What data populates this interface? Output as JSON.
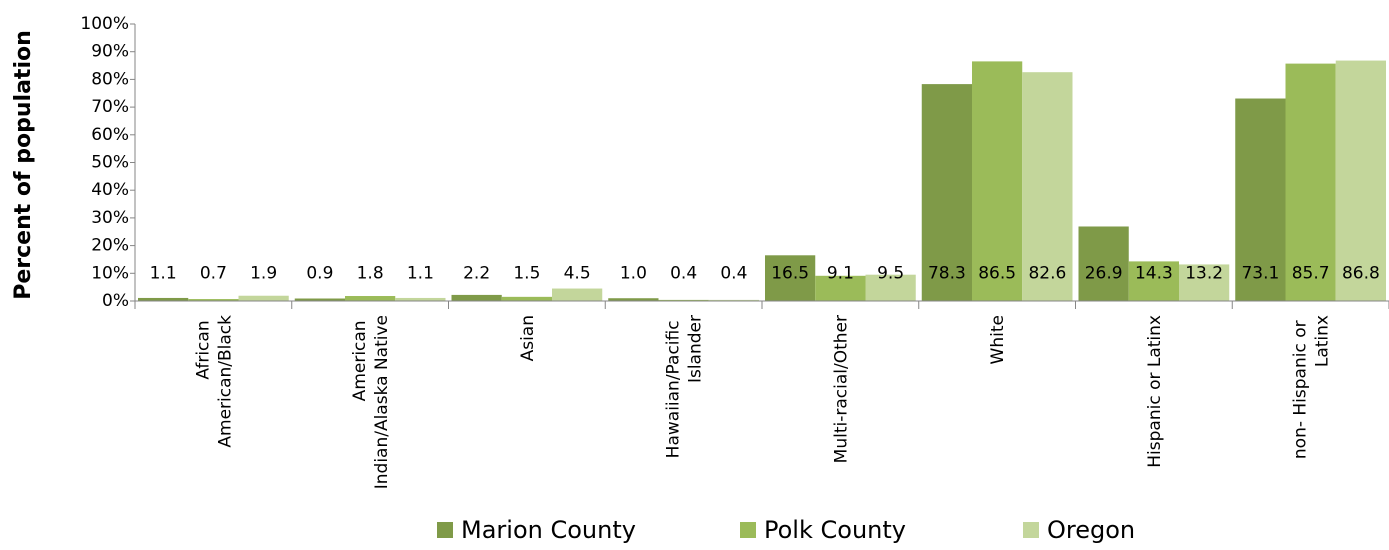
{
  "chart_data": {
    "type": "bar",
    "y_label": "Percent of population",
    "categories": [
      "African American/Black",
      "American Indian/Alaska Native",
      "Asian",
      "Hawaiian/Pacific Islander",
      "Multi-racial/Other",
      "White",
      "Hispanic or Latinx",
      "non- Hispanic or Latinx"
    ],
    "series": [
      {
        "name": "Marion County",
        "color": "#7f9a48",
        "values": [
          1.1,
          0.9,
          2.2,
          1.0,
          16.5,
          78.3,
          26.9,
          73.1
        ],
        "value_labels": [
          "1.1",
          "0.9",
          "2.2",
          "1.0",
          "16.5",
          "78.3",
          "26.9",
          "73.1"
        ]
      },
      {
        "name": "Polk County",
        "color": "#9bbb59",
        "values": [
          0.7,
          1.8,
          1.5,
          0.4,
          9.1,
          86.5,
          14.3,
          85.7
        ],
        "value_labels": [
          "0.7",
          "1.8",
          "1.5",
          "0.4",
          "9.1",
          "86.5",
          "14.3",
          "85.7"
        ]
      },
      {
        "name": "Oregon",
        "color": "#c3d69b",
        "values": [
          1.9,
          1.1,
          4.5,
          0.4,
          9.5,
          82.6,
          13.2,
          86.8
        ],
        "value_labels": [
          "1.9",
          "1.1",
          "4.5",
          "0.4",
          "9.5",
          "82.6",
          "13.2",
          "86.8"
        ]
      }
    ],
    "ylim": [
      0,
      100
    ],
    "yticks": [
      {
        "value": 0,
        "label": "0%"
      },
      {
        "value": 10,
        "label": "10%"
      },
      {
        "value": 20,
        "label": "20%"
      },
      {
        "value": 30,
        "label": "30%"
      },
      {
        "value": 40,
        "label": "40%"
      },
      {
        "value": 50,
        "label": "50%"
      },
      {
        "value": 60,
        "label": "60%"
      },
      {
        "value": 70,
        "label": "70%"
      },
      {
        "value": 80,
        "label": "80%"
      },
      {
        "value": 90,
        "label": "90%"
      },
      {
        "value": 100,
        "label": "100%"
      }
    ],
    "grid": false,
    "legend": "bottom"
  }
}
